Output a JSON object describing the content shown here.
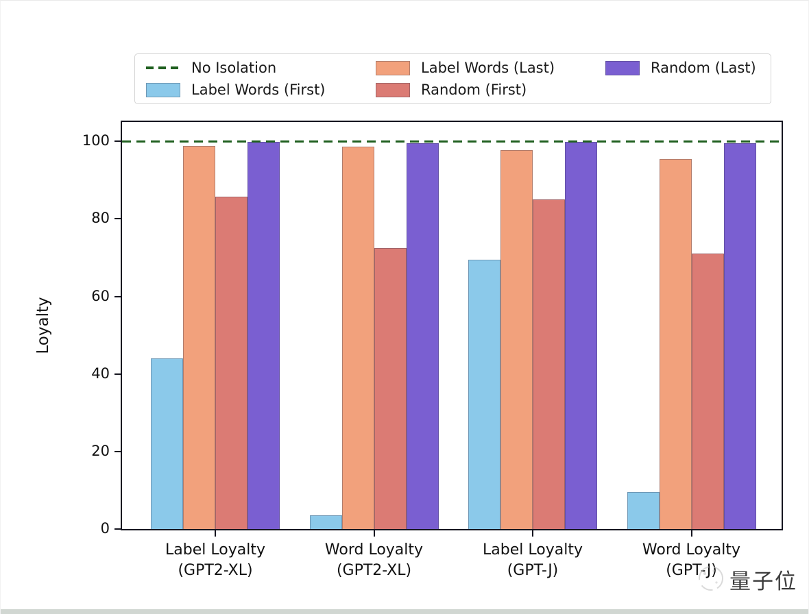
{
  "figure": {
    "watermark": {
      "text": "量子位"
    }
  },
  "chart_data": {
    "type": "bar",
    "title": "",
    "xlabel": "",
    "ylabel": "Loyalty",
    "ylim": [
      0,
      105
    ],
    "yticks": [
      0,
      20,
      40,
      60,
      80,
      100
    ],
    "grid": false,
    "legend_position": "top",
    "categories": [
      "Label Loyalty\n(GPT2-XL)",
      "Word Loyalty\n(GPT2-XL)",
      "Label Loyalty\n(GPT-J)",
      "Word Loyalty\n(GPT-J)"
    ],
    "series": [
      {
        "name": "Label Words (First)",
        "color": "#8BC9EA",
        "values": [
          44.0,
          3.5,
          69.5,
          9.6
        ]
      },
      {
        "name": "Label Words (Last)",
        "color": "#F2A17C",
        "values": [
          98.8,
          98.6,
          97.7,
          95.5
        ]
      },
      {
        "name": "Random (First)",
        "color": "#DB7B74",
        "values": [
          85.8,
          72.4,
          85.0,
          71.0
        ]
      },
      {
        "name": "Random (Last)",
        "color": "#7A5FD1",
        "values": [
          99.8,
          99.6,
          99.9,
          99.5
        ]
      }
    ],
    "reference_line": {
      "label": "No Isolation",
      "value": 100,
      "color": "#1F5F1F",
      "style": "dashed"
    },
    "legend_entries": [
      "No Isolation",
      "Label Words (First)",
      "Label Words (Last)",
      "Random (First)",
      "Random (Last)"
    ]
  }
}
